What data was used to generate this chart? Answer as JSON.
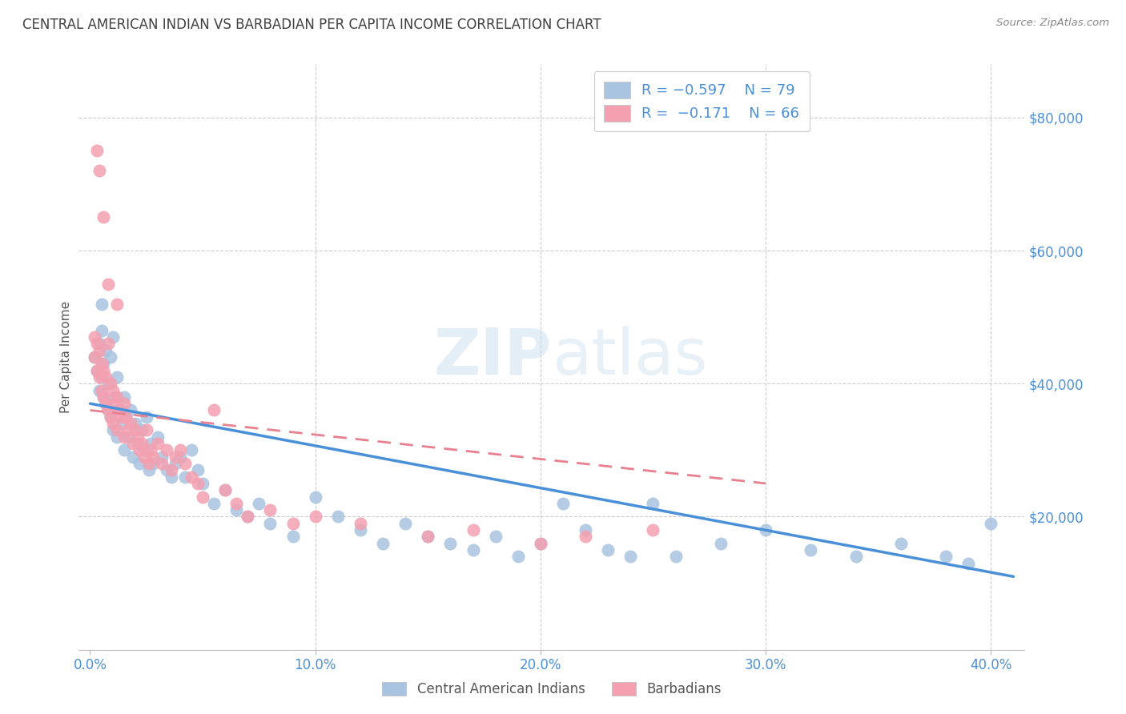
{
  "title": "CENTRAL AMERICAN INDIAN VS BARBADIAN PER CAPITA INCOME CORRELATION CHART",
  "source": "Source: ZipAtlas.com",
  "ylabel": "Per Capita Income",
  "xlabel_ticks": [
    "0.0%",
    "10.0%",
    "20.0%",
    "30.0%",
    "40.0%"
  ],
  "xlabel_vals": [
    0.0,
    0.1,
    0.2,
    0.3,
    0.4
  ],
  "ytick_labels": [
    "$20,000",
    "$40,000",
    "$60,000",
    "$80,000"
  ],
  "ytick_vals": [
    20000,
    40000,
    60000,
    80000
  ],
  "legend_label1": "Central American Indians",
  "legend_label2": "Barbadians",
  "watermark": "ZIPatlas",
  "color_blue": "#a8c4e0",
  "color_pink": "#f4a0b0",
  "color_blue_line": "#4a90d9",
  "color_pink_line": "#e88090",
  "title_color": "#404040",
  "axis_tick_color": "#4a90d9",
  "legend_text_color": "#4a90d9",
  "legend_label_color": "#555555",
  "blue_scatter_x": [
    0.002,
    0.003,
    0.004,
    0.004,
    0.005,
    0.005,
    0.006,
    0.006,
    0.007,
    0.007,
    0.008,
    0.008,
    0.009,
    0.009,
    0.01,
    0.01,
    0.011,
    0.012,
    0.012,
    0.013,
    0.014,
    0.015,
    0.015,
    0.016,
    0.017,
    0.018,
    0.019,
    0.02,
    0.021,
    0.022,
    0.023,
    0.024,
    0.025,
    0.026,
    0.027,
    0.028,
    0.03,
    0.032,
    0.034,
    0.036,
    0.038,
    0.04,
    0.042,
    0.045,
    0.048,
    0.05,
    0.055,
    0.06,
    0.065,
    0.07,
    0.075,
    0.08,
    0.09,
    0.1,
    0.11,
    0.12,
    0.13,
    0.14,
    0.15,
    0.16,
    0.17,
    0.18,
    0.19,
    0.2,
    0.21,
    0.22,
    0.23,
    0.24,
    0.25,
    0.26,
    0.28,
    0.3,
    0.32,
    0.34,
    0.36,
    0.38,
    0.39,
    0.4,
    0.005
  ],
  "blue_scatter_y": [
    44000,
    42000,
    46000,
    39000,
    48000,
    41000,
    43000,
    38000,
    45000,
    37000,
    40000,
    36000,
    44000,
    35000,
    47000,
    33000,
    38000,
    41000,
    32000,
    36000,
    34000,
    38000,
    30000,
    35000,
    32000,
    36000,
    29000,
    34000,
    31000,
    28000,
    33000,
    30000,
    35000,
    27000,
    31000,
    28000,
    32000,
    29000,
    27000,
    26000,
    28000,
    29000,
    26000,
    30000,
    27000,
    25000,
    22000,
    24000,
    21000,
    20000,
    22000,
    19000,
    17000,
    23000,
    20000,
    18000,
    16000,
    19000,
    17000,
    16000,
    15000,
    17000,
    14000,
    16000,
    22000,
    18000,
    15000,
    14000,
    22000,
    14000,
    16000,
    18000,
    15000,
    14000,
    16000,
    14000,
    13000,
    19000,
    52000
  ],
  "pink_scatter_x": [
    0.002,
    0.002,
    0.003,
    0.003,
    0.004,
    0.004,
    0.005,
    0.005,
    0.006,
    0.006,
    0.007,
    0.007,
    0.008,
    0.008,
    0.009,
    0.009,
    0.01,
    0.01,
    0.011,
    0.012,
    0.012,
    0.013,
    0.014,
    0.015,
    0.015,
    0.016,
    0.017,
    0.018,
    0.019,
    0.02,
    0.021,
    0.022,
    0.023,
    0.024,
    0.025,
    0.026,
    0.027,
    0.028,
    0.03,
    0.032,
    0.034,
    0.036,
    0.038,
    0.04,
    0.042,
    0.045,
    0.048,
    0.05,
    0.055,
    0.06,
    0.065,
    0.07,
    0.08,
    0.09,
    0.1,
    0.12,
    0.15,
    0.17,
    0.2,
    0.22,
    0.25,
    0.003,
    0.004,
    0.006,
    0.008,
    0.012
  ],
  "pink_scatter_y": [
    47000,
    44000,
    46000,
    42000,
    45000,
    41000,
    43000,
    39000,
    42000,
    38000,
    41000,
    37000,
    46000,
    36000,
    40000,
    35000,
    39000,
    34000,
    37000,
    38000,
    33000,
    36000,
    35000,
    37000,
    32000,
    35000,
    33000,
    34000,
    31000,
    33000,
    32000,
    30000,
    31000,
    29000,
    33000,
    28000,
    30000,
    29000,
    31000,
    28000,
    30000,
    27000,
    29000,
    30000,
    28000,
    26000,
    25000,
    23000,
    36000,
    24000,
    22000,
    20000,
    21000,
    19000,
    20000,
    19000,
    17000,
    18000,
    16000,
    17000,
    18000,
    75000,
    72000,
    65000,
    55000,
    52000
  ],
  "blue_line_x0": 0.0,
  "blue_line_x1": 0.41,
  "blue_line_y0": 37000,
  "blue_line_y1": 11000,
  "pink_line_x0": 0.0,
  "pink_line_x1": 0.3,
  "pink_line_y0": 36000,
  "pink_line_y1": 25000,
  "xlim": [
    -0.005,
    0.415
  ],
  "ylim": [
    0,
    88000
  ],
  "background_color": "#ffffff",
  "grid_color": "#cccccc"
}
